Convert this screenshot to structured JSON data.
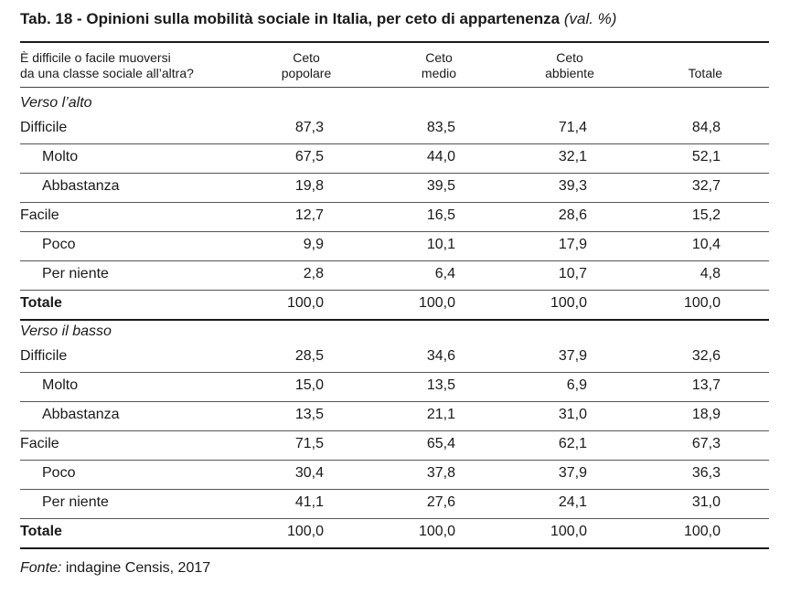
{
  "title": {
    "main": "Tab. 18 - Opinioni sulla mobilità sociale in Italia, per ceto di appartenenza",
    "unit": "(val. %)"
  },
  "header": {
    "question_line1": "È difficile o facile muoversi",
    "question_line2": "da una classe sociale all’altra?",
    "cols": [
      {
        "line1": "Ceto",
        "line2": "popolare"
      },
      {
        "line1": "Ceto",
        "line2": "medio"
      },
      {
        "line1": "Ceto",
        "line2": "abbiente"
      },
      {
        "line1": "",
        "line2": "Totale"
      }
    ]
  },
  "sections": [
    {
      "label": "Verso l’alto",
      "rows": [
        {
          "label": "Difficile",
          "values": [
            "87,3",
            "83,5",
            "71,4",
            "84,8"
          ]
        },
        {
          "label": "Molto",
          "values": [
            "67,5",
            "44,0",
            "32,1",
            "52,1"
          ]
        },
        {
          "label": "Abbastanza",
          "values": [
            "19,8",
            "39,5",
            "39,3",
            "32,7"
          ]
        },
        {
          "label": "Facile",
          "values": [
            "12,7",
            "16,5",
            "28,6",
            "15,2"
          ]
        },
        {
          "label": "Poco",
          "values": [
            "9,9",
            "10,1",
            "17,9",
            "10,4"
          ]
        },
        {
          "label": "Per niente",
          "values": [
            "2,8",
            "6,4",
            "10,7",
            "4,8"
          ]
        },
        {
          "label": "Totale",
          "values": [
            "100,0",
            "100,0",
            "100,0",
            "100,0"
          ]
        }
      ]
    },
    {
      "label": "Verso il basso",
      "rows": [
        {
          "label": "Difficile",
          "values": [
            "28,5",
            "34,6",
            "37,9",
            "32,6"
          ]
        },
        {
          "label": "Molto",
          "values": [
            "15,0",
            "13,5",
            "6,9",
            "13,7"
          ]
        },
        {
          "label": "Abbastanza",
          "values": [
            "13,5",
            "21,1",
            "31,0",
            "18,9"
          ]
        },
        {
          "label": "Facile",
          "values": [
            "71,5",
            "65,4",
            "62,1",
            "67,3"
          ]
        },
        {
          "label": "Poco",
          "values": [
            "30,4",
            "37,8",
            "37,9",
            "36,3"
          ]
        },
        {
          "label": "Per niente",
          "values": [
            "41,1",
            "27,6",
            "24,1",
            "31,0"
          ]
        },
        {
          "label": "Totale",
          "values": [
            "100,0",
            "100,0",
            "100,0",
            "100,0"
          ]
        }
      ]
    }
  ],
  "source": {
    "label": "Fonte:",
    "text": "indagine Censis, 2017"
  }
}
